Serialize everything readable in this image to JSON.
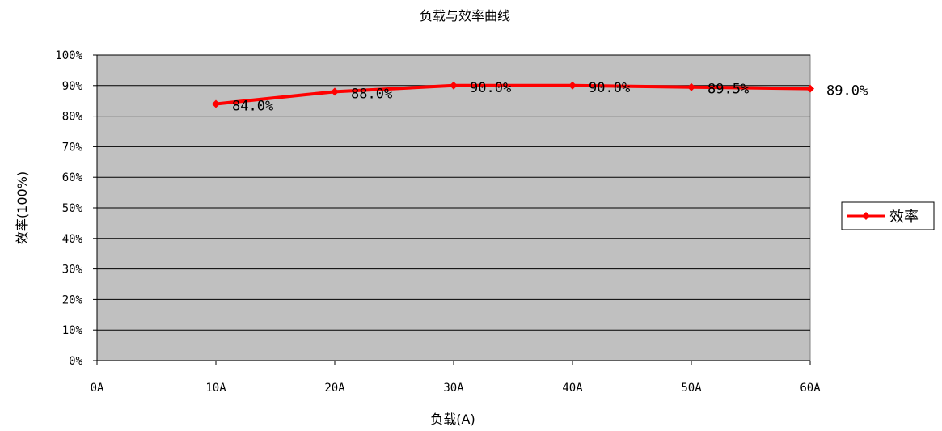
{
  "chart_data": {
    "type": "line",
    "title": "负载与效率曲线",
    "xlabel": "负载(A)",
    "ylabel": "效率(100%)",
    "categories": [
      "0A",
      "10A",
      "20A",
      "30A",
      "40A",
      "50A",
      "60A"
    ],
    "yticks": [
      "0%",
      "10%",
      "20%",
      "30%",
      "40%",
      "50%",
      "60%",
      "70%",
      "80%",
      "90%",
      "100%"
    ],
    "ylim": [
      0,
      100
    ],
    "grid": true,
    "legend": "right",
    "colors": {
      "plot_bg": "#c0c0c0",
      "line": "#ff0000",
      "grid": "#000000"
    },
    "series": [
      {
        "name": "效率",
        "x": [
          10,
          20,
          30,
          40,
          50,
          60
        ],
        "values": [
          84.0,
          88.0,
          90.0,
          90.0,
          89.5,
          89.0
        ],
        "labels": [
          "84.0%",
          "88.0%",
          "90.0%",
          "90.0%",
          "89.5%",
          "89.0%"
        ]
      }
    ]
  }
}
